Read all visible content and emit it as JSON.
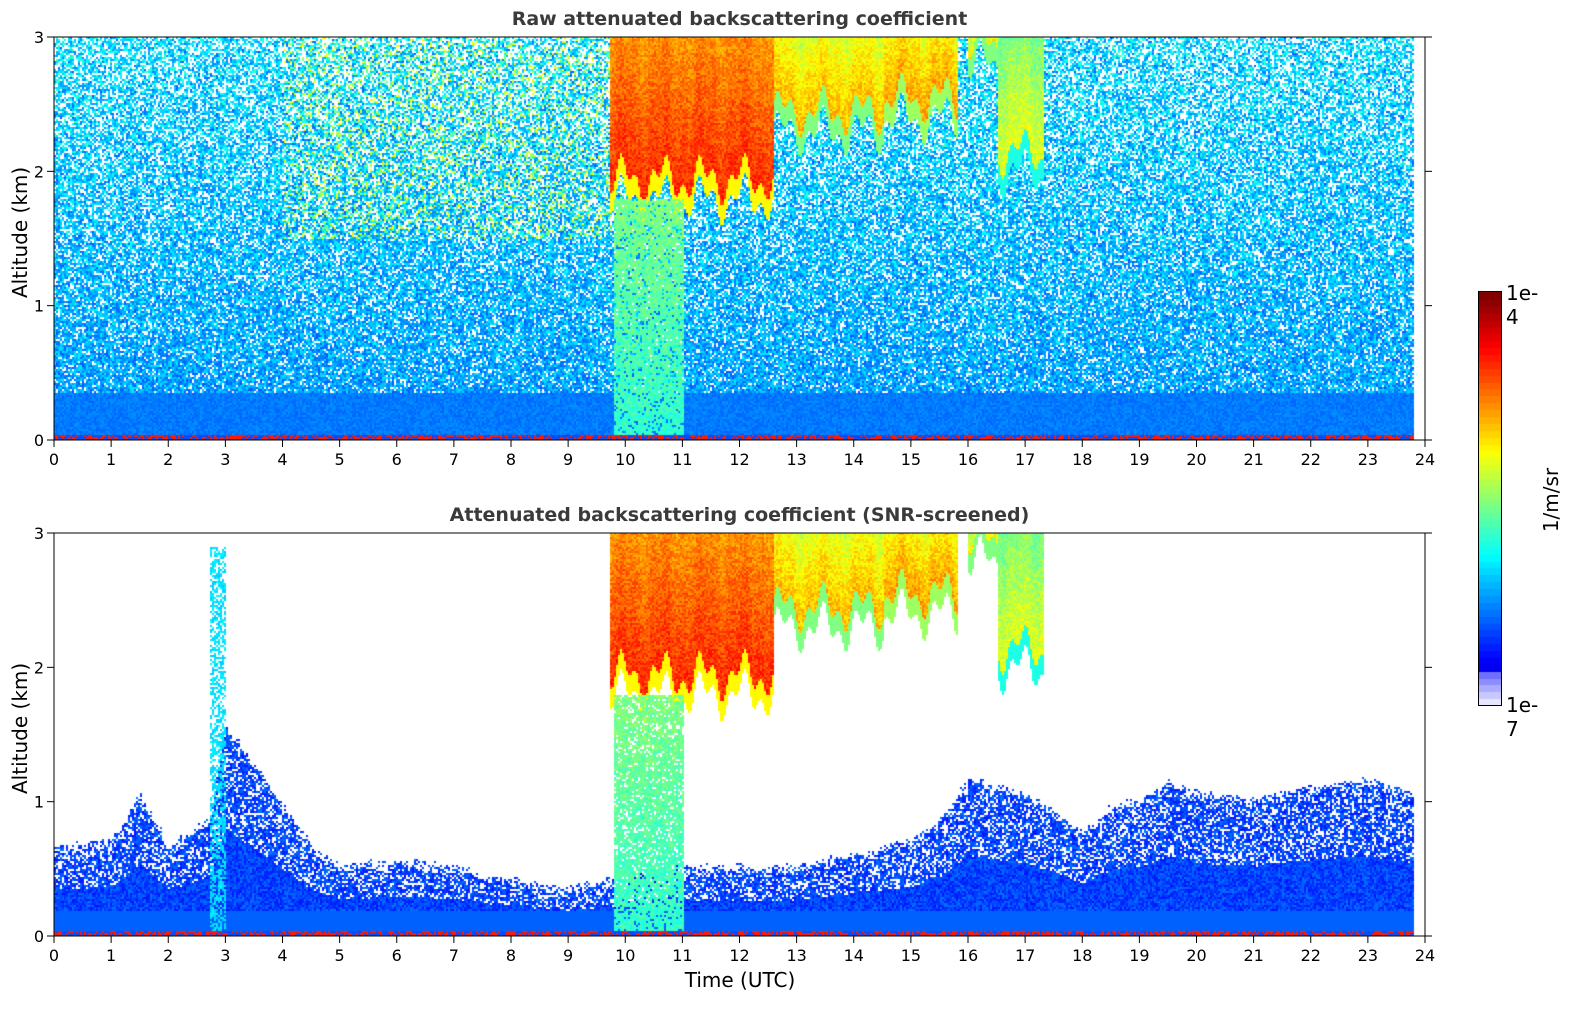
{
  "chart_data": [
    {
      "type": "heatmap",
      "title": "Raw attenuated backscattering coefficient",
      "ylabel": "Altitude (km)",
      "xlabel": "",
      "xlim": [
        0,
        24
      ],
      "ylim": [
        0,
        3
      ],
      "x_ticks": [
        0,
        1,
        2,
        3,
        4,
        5,
        6,
        7,
        8,
        9,
        10,
        11,
        12,
        13,
        14,
        15,
        16,
        17,
        18,
        19,
        20,
        21,
        22,
        23,
        24
      ],
      "y_ticks": [
        0,
        1,
        2,
        3
      ],
      "data_end_hour": 23.8,
      "screened": false,
      "cloud_layers": [
        {
          "start": 9.7,
          "end": 12.6,
          "base_km": 1.8,
          "top_km": 3.0,
          "level": 0.85
        },
        {
          "start": 12.6,
          "end": 14.5,
          "base_km": 2.3,
          "top_km": 3.0,
          "level": 0.72
        },
        {
          "start": 14.5,
          "end": 15.8,
          "base_km": 2.4,
          "top_km": 3.0,
          "level": 0.75
        },
        {
          "start": 16.0,
          "end": 16.5,
          "base_km": 2.8,
          "top_km": 3.0,
          "level": 0.72
        },
        {
          "start": 16.5,
          "end": 17.3,
          "base_km": 2.0,
          "top_km": 3.0,
          "level": 0.62
        }
      ],
      "precipitation_shafts": [
        {
          "start": 9.8,
          "end": 11.0,
          "top_km": 1.8,
          "level": 0.5
        }
      ]
    },
    {
      "type": "heatmap",
      "title": "Attenuated backscattering coefficient (SNR-screened)",
      "ylabel": "Altitude (km)",
      "xlabel": "Time (UTC)",
      "xlim": [
        0,
        24
      ],
      "ylim": [
        0,
        3
      ],
      "x_ticks": [
        0,
        1,
        2,
        3,
        4,
        5,
        6,
        7,
        8,
        9,
        10,
        11,
        12,
        13,
        14,
        15,
        16,
        17,
        18,
        19,
        20,
        21,
        22,
        23,
        24
      ],
      "y_ticks": [
        0,
        1,
        2,
        3
      ],
      "data_end_hour": 23.8,
      "screened": true,
      "boundary_layer_top_km": [
        [
          0,
          0.7
        ],
        [
          1,
          0.75
        ],
        [
          1.5,
          1.1
        ],
        [
          2,
          0.7
        ],
        [
          2.7,
          0.9
        ],
        [
          3,
          1.6
        ],
        [
          3.7,
          1.2
        ],
        [
          4.5,
          0.7
        ],
        [
          5,
          0.55
        ],
        [
          6,
          0.6
        ],
        [
          7,
          0.55
        ],
        [
          8,
          0.45
        ],
        [
          9,
          0.4
        ],
        [
          9.7,
          0.45
        ],
        [
          10,
          0.5
        ],
        [
          11,
          0.55
        ],
        [
          12,
          0.55
        ],
        [
          13,
          0.55
        ],
        [
          14,
          0.65
        ],
        [
          15,
          0.75
        ],
        [
          15.5,
          0.9
        ],
        [
          16,
          1.2
        ],
        [
          17,
          1.1
        ],
        [
          18,
          0.8
        ],
        [
          18.5,
          1.0
        ],
        [
          19,
          1.05
        ],
        [
          19.5,
          1.2
        ],
        [
          20,
          1.1
        ],
        [
          21,
          1.05
        ],
        [
          22,
          1.15
        ],
        [
          23,
          1.2
        ],
        [
          23.8,
          1.1
        ]
      ],
      "cloud_layers": [
        {
          "start": 9.7,
          "end": 12.6,
          "base_km": 1.8,
          "top_km": 3.0,
          "level": 0.85
        },
        {
          "start": 12.6,
          "end": 14.5,
          "base_km": 2.3,
          "top_km": 3.0,
          "level": 0.72
        },
        {
          "start": 14.5,
          "end": 15.8,
          "base_km": 2.4,
          "top_km": 3.0,
          "level": 0.75
        },
        {
          "start": 16.0,
          "end": 16.5,
          "base_km": 2.8,
          "top_km": 3.0,
          "level": 0.72
        },
        {
          "start": 16.5,
          "end": 17.3,
          "base_km": 2.0,
          "top_km": 3.0,
          "level": 0.62
        }
      ],
      "precipitation_shafts": [
        {
          "start": 9.8,
          "end": 11.0,
          "top_km": 1.8,
          "level": 0.5
        }
      ]
    }
  ],
  "colorbar": {
    "label": "1/m/sr",
    "min_label": "1e-7",
    "max_label": "1e-4",
    "colormap": "jet"
  }
}
